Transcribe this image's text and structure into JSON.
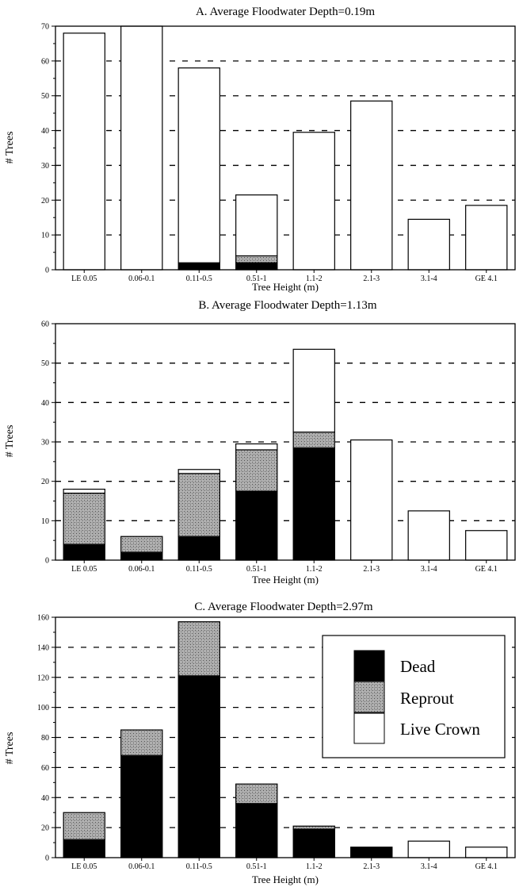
{
  "chart_data": [
    {
      "type": "bar",
      "stacked": true,
      "title": "A. Average Floodwater Depth=0.19m",
      "xlabel": "Tree Height (m)",
      "ylabel": "# Trees",
      "ylim": [
        0,
        70
      ],
      "yticks": [
        0,
        10,
        20,
        30,
        40,
        50,
        60,
        70
      ],
      "grid": "dashed horizontal",
      "categories": [
        "LE 0.05",
        "0.06-0.1",
        "0.11-0.5",
        "0.51-1",
        "1.1-2",
        "2.1-3",
        "3.1-4",
        "GE 4.1"
      ],
      "series": [
        {
          "name": "Dead",
          "values": [
            0,
            0,
            2,
            2,
            0,
            0,
            0,
            0
          ]
        },
        {
          "name": "Reprout",
          "values": [
            0,
            0,
            0,
            2,
            0,
            0,
            0,
            0
          ]
        },
        {
          "name": "Live Crown",
          "values": [
            68,
            70,
            56,
            17.5,
            39.5,
            48.5,
            14.5,
            18.5
          ]
        }
      ]
    },
    {
      "type": "bar",
      "stacked": true,
      "title": "B. Average Floodwater Depth=1.13m",
      "xlabel": "Tree Height (m)",
      "ylabel": "# Trees",
      "ylim": [
        0,
        60
      ],
      "yticks": [
        0,
        10,
        20,
        30,
        40,
        50,
        60
      ],
      "grid": "dashed horizontal",
      "categories": [
        "LE 0.05",
        "0.06-0.1",
        "0.11-0.5",
        "0.51-1",
        "1.1-2",
        "2.1-3",
        "3.1-4",
        "GE 4.1"
      ],
      "series": [
        {
          "name": "Dead",
          "values": [
            4,
            2,
            6,
            17.5,
            28.5,
            0,
            0,
            0
          ]
        },
        {
          "name": "Reprout",
          "values": [
            13,
            4,
            16,
            10.5,
            4,
            0,
            0,
            0
          ]
        },
        {
          "name": "Live Crown",
          "values": [
            1,
            0,
            1,
            1.5,
            21,
            30.5,
            12.5,
            7.5
          ]
        }
      ]
    },
    {
      "type": "bar",
      "stacked": true,
      "title": "C. Average Floodwater Depth=2.97m",
      "xlabel": "Tree Height (m)",
      "ylabel": "# Trees",
      "ylim": [
        0,
        160
      ],
      "yticks": [
        0,
        20,
        40,
        60,
        80,
        100,
        120,
        140,
        160
      ],
      "grid": "dashed horizontal",
      "legend_position": "top-right",
      "categories": [
        "LE 0.05",
        "0.06-0.1",
        "0.11-0.5",
        "0.51-1",
        "1.1-2",
        "2.1-3",
        "3.1-4",
        "GE 4.1"
      ],
      "series": [
        {
          "name": "Dead",
          "values": [
            12,
            68,
            121,
            36,
            19,
            7,
            0,
            0
          ]
        },
        {
          "name": "Reprout",
          "values": [
            18,
            17,
            36,
            13,
            2,
            0,
            0,
            0
          ]
        },
        {
          "name": "Live Crown",
          "values": [
            0,
            0,
            0,
            0,
            0,
            0,
            11,
            7
          ]
        }
      ]
    }
  ],
  "legend": {
    "items": [
      {
        "name": "Dead",
        "color": "#000000"
      },
      {
        "name": "Reprout",
        "color": "#8f8f8f"
      },
      {
        "name": "Live Crown",
        "color": "#ffffff"
      }
    ]
  }
}
